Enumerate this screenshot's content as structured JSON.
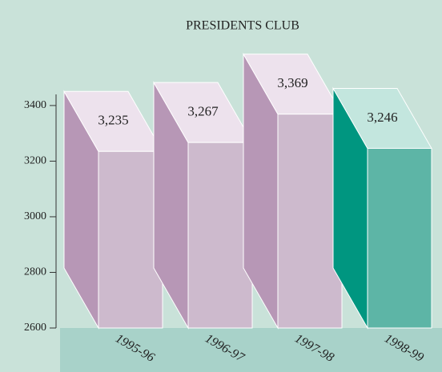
{
  "chart_data": {
    "type": "bar3d",
    "title": "PRESIDENTS CLUB",
    "categories": [
      "1995-96",
      "1996-97",
      "1997-98",
      "1998-99"
    ],
    "values": [
      3235,
      3267,
      3369,
      3246
    ],
    "value_labels": [
      "3,235",
      "3,267",
      "3,369",
      "3,246"
    ],
    "colors": [
      {
        "front": "#cdbacd",
        "side": "#b797b6",
        "top": "#ede2ed"
      },
      {
        "front": "#cdbacd",
        "side": "#b797b6",
        "top": "#ede2ed"
      },
      {
        "front": "#cdbacd",
        "side": "#b797b6",
        "top": "#ede2ed"
      },
      {
        "front": "#5db5a6",
        "side": "#009680",
        "top": "#c3e6de"
      }
    ],
    "ylim": [
      2600,
      3440
    ],
    "yticks": [
      2600,
      2800,
      3000,
      3200,
      3400
    ]
  }
}
